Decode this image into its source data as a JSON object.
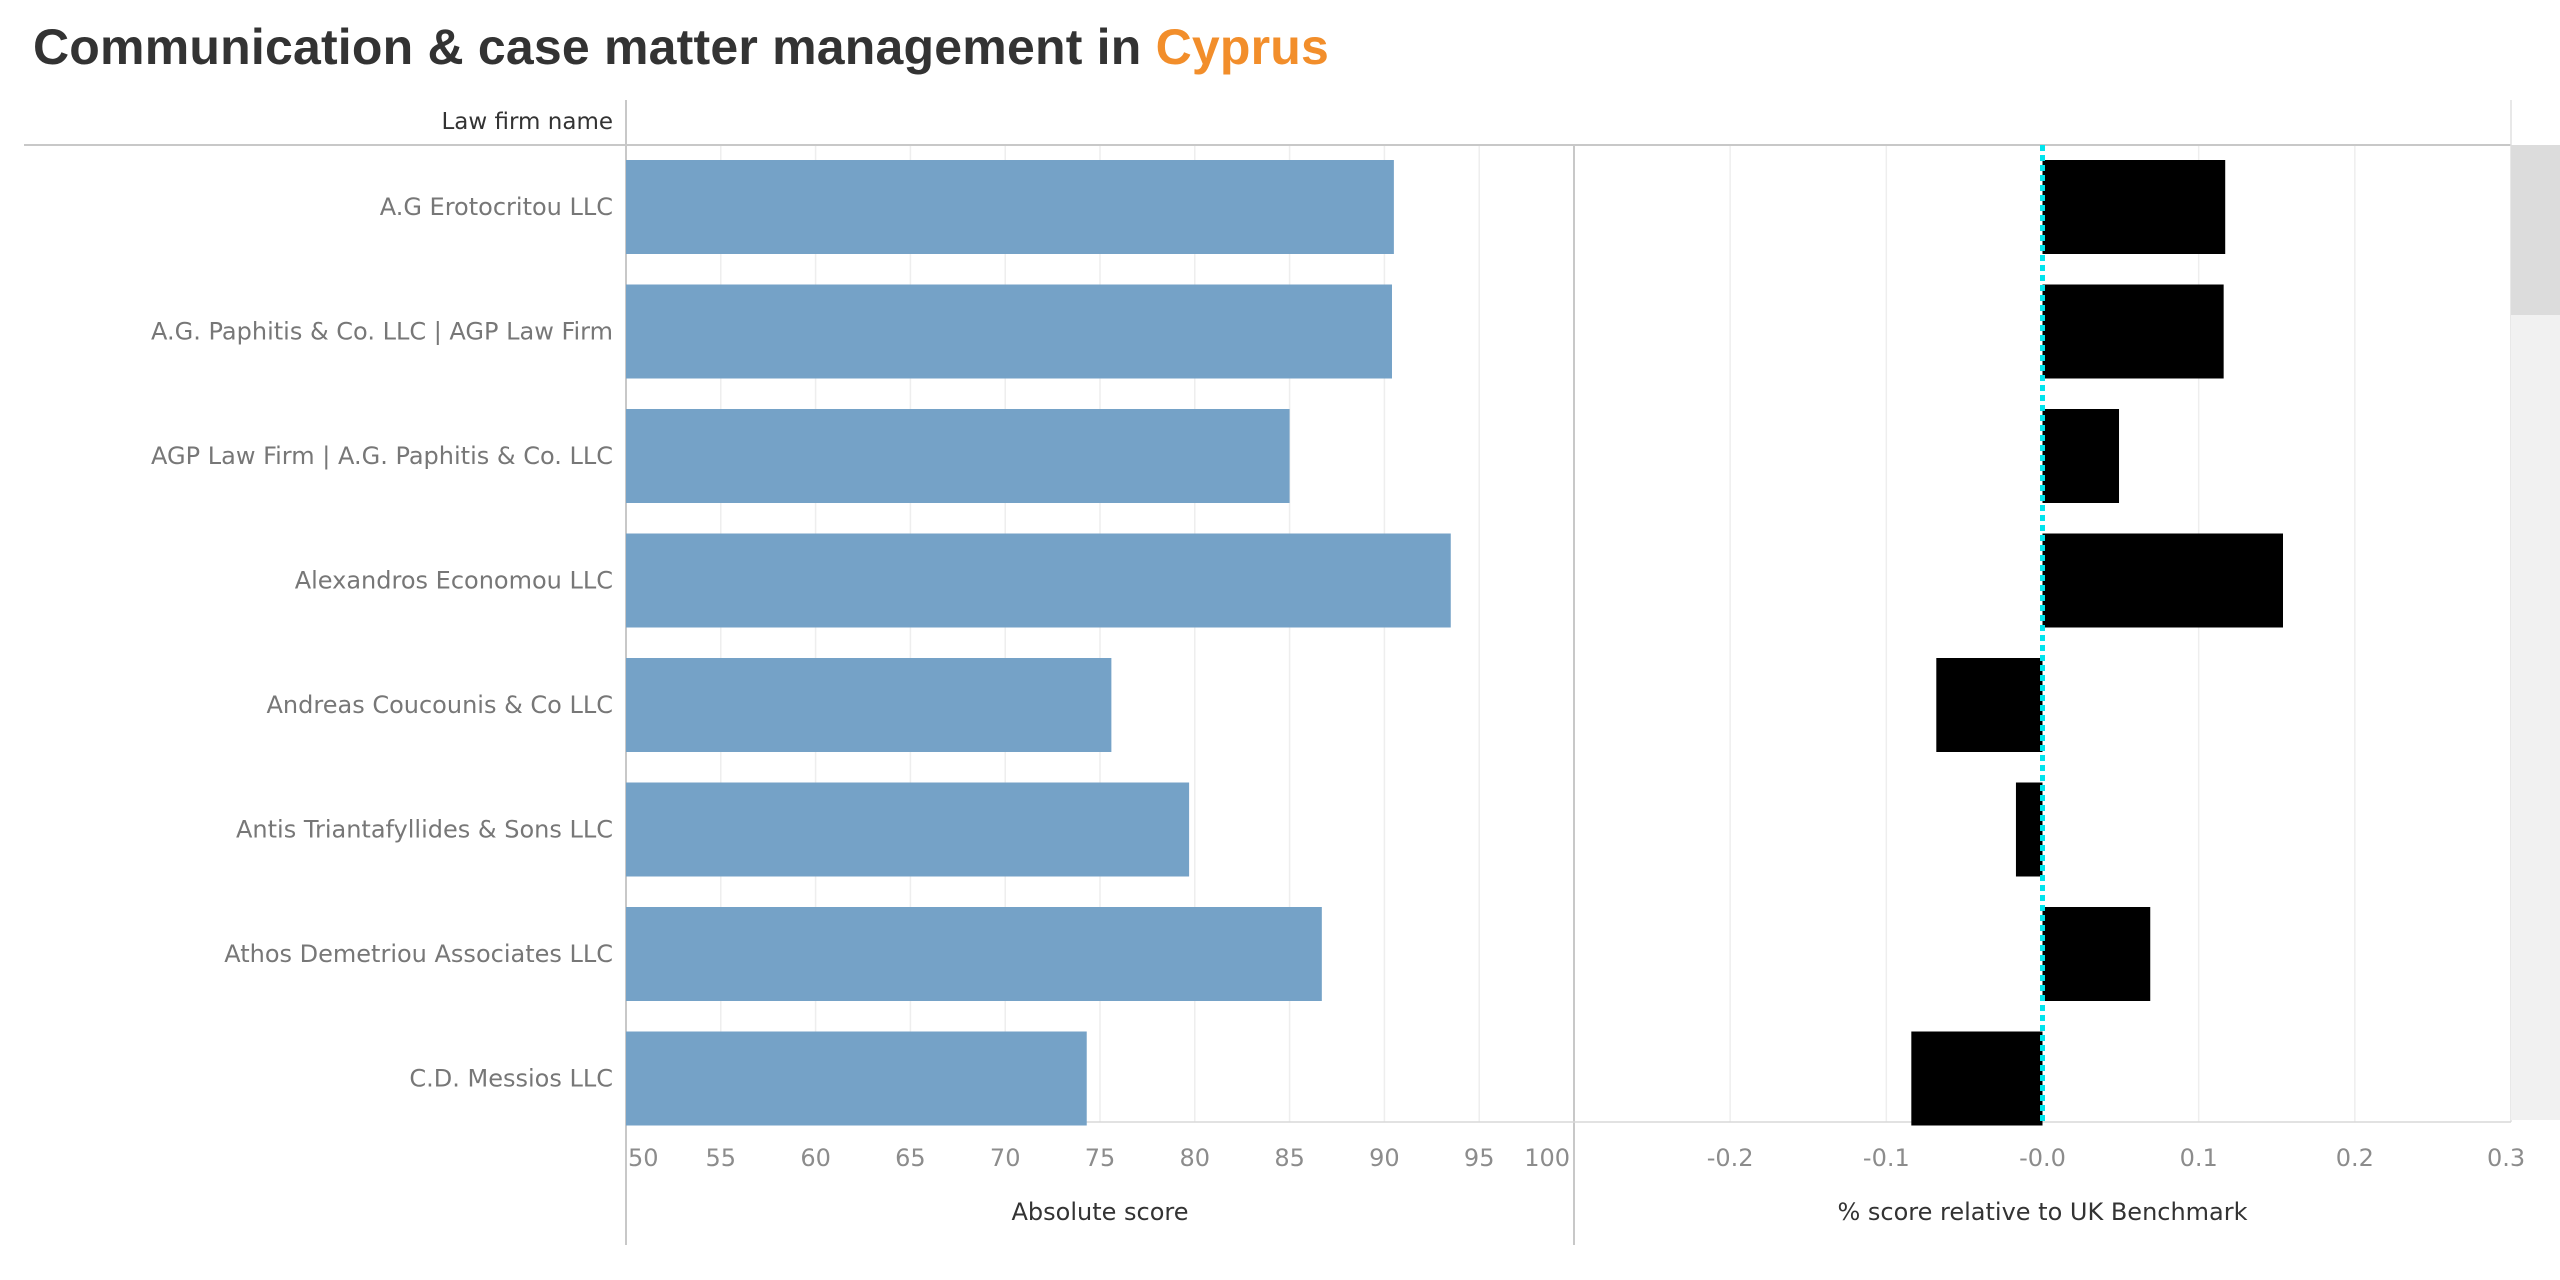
{
  "title": {
    "prefix": "Communication & case matter management in ",
    "highlight": "Cyprus"
  },
  "colors": {
    "absolute_bar": "#75a2c7",
    "relative_bar": "#000000",
    "benchmark_line": "#00e5ee",
    "highlight": "#f28e2b"
  },
  "chart_data": [
    {
      "type": "bar",
      "orientation": "horizontal",
      "row_header": "Law firm name",
      "xlabel": "Absolute score",
      "categories": [
        "A.G Erotocritou LLC",
        "A.G. Paphitis & Co. LLC | AGP Law Firm",
        "AGP Law Firm | A.G. Paphitis & Co. LLC",
        "Alexandros Economou LLC",
        "Andreas Coucounis & Co LLC",
        "Antis Triantafyllides & Sons LLC",
        "Athos Demetriou Associates LLC",
        "C.D. Messios LLC"
      ],
      "values": [
        90.5,
        90.4,
        85.0,
        93.5,
        75.6,
        79.7,
        86.7,
        74.3
      ],
      "xlim": [
        50,
        100
      ],
      "ticks": [
        50,
        55,
        60,
        65,
        70,
        75,
        80,
        85,
        90,
        95,
        100
      ],
      "tick_labels": [
        "50",
        "55",
        "60",
        "65",
        "70",
        "75",
        "80",
        "85",
        "90",
        "95",
        "100"
      ],
      "grid": true
    },
    {
      "type": "bar",
      "orientation": "horizontal",
      "xlabel": "% score relative to UK Benchmark",
      "categories": [
        "A.G Erotocritou LLC",
        "A.G. Paphitis & Co. LLC | AGP Law Firm",
        "AGP Law Firm | A.G. Paphitis & Co. LLC",
        "Alexandros Economou LLC",
        "Andreas Coucounis & Co LLC",
        "Antis Triantafyllides & Sons LLC",
        "Athos Demetriou Associates LLC",
        "C.D. Messios LLC"
      ],
      "values": [
        0.117,
        0.116,
        0.049,
        0.154,
        -0.068,
        -0.017,
        0.069,
        -0.084
      ],
      "xlim": [
        -0.3,
        0.3
      ],
      "ticks": [
        -0.2,
        -0.1,
        0.0,
        0.1,
        0.2,
        0.3
      ],
      "tick_labels": [
        "-0.2",
        "-0.1",
        "-0.0",
        "0.1",
        "0.2",
        "0.3"
      ],
      "reference_line": 0.0,
      "grid": true
    }
  ]
}
